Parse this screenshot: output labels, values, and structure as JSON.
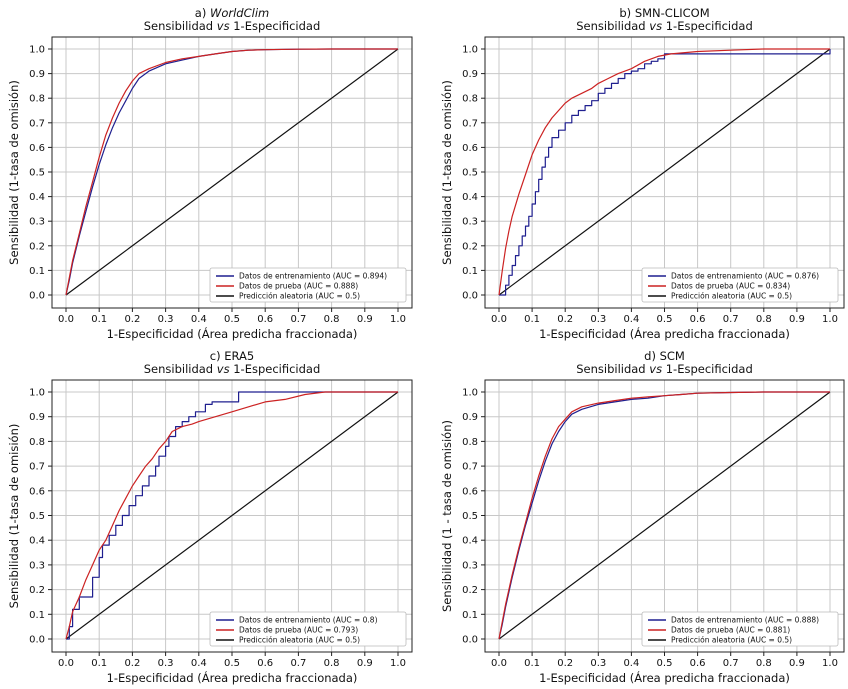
{
  "chart_data": [
    {
      "type": "line",
      "panel": "a)",
      "title_name": "WorldClim",
      "title_italic": true,
      "subtitle_pre": "Sensibilidad ",
      "subtitle_vs": "vs",
      "subtitle_post": " 1-Especificidad",
      "xlabel": "1-Especificidad (Área predicha fraccionada)",
      "ylabel": "Sensibilidad (1-tasa de omisión)",
      "xlim": [
        0,
        1
      ],
      "ylim": [
        0,
        1
      ],
      "xticks": [
        "0.0",
        "0.1",
        "0.2",
        "0.3",
        "0.4",
        "0.5",
        "0.6",
        "0.7",
        "0.8",
        "0.9",
        "1.0"
      ],
      "yticks": [
        "0.0",
        "0.1",
        "0.2",
        "0.3",
        "0.4",
        "0.5",
        "0.6",
        "0.7",
        "0.8",
        "0.9",
        "1.0"
      ],
      "grid": true,
      "legend_position": "lower-right",
      "series": [
        {
          "name": "Datos de entrenamiento (AUC = 0.894)",
          "color": "#1f1f8f",
          "step": false,
          "x": [
            0,
            0.01,
            0.02,
            0.04,
            0.06,
            0.08,
            0.1,
            0.12,
            0.14,
            0.16,
            0.18,
            0.2,
            0.22,
            0.25,
            0.3,
            0.35,
            0.4,
            0.45,
            0.5,
            0.55,
            0.6,
            0.7,
            0.8,
            0.9,
            1.0
          ],
          "y": [
            0,
            0.06,
            0.13,
            0.24,
            0.34,
            0.44,
            0.53,
            0.61,
            0.68,
            0.74,
            0.79,
            0.84,
            0.88,
            0.91,
            0.94,
            0.955,
            0.97,
            0.98,
            0.99,
            0.995,
            0.997,
            0.999,
            1.0,
            1.0,
            1.0
          ]
        },
        {
          "name": "Datos de prueba (AUC = 0.888)",
          "color": "#cc2222",
          "step": false,
          "x": [
            0,
            0.01,
            0.02,
            0.04,
            0.06,
            0.08,
            0.1,
            0.12,
            0.14,
            0.16,
            0.18,
            0.2,
            0.22,
            0.25,
            0.3,
            0.35,
            0.4,
            0.45,
            0.5,
            0.55,
            0.6,
            0.7,
            0.8,
            0.9,
            1.0
          ],
          "y": [
            0,
            0.07,
            0.14,
            0.25,
            0.36,
            0.46,
            0.56,
            0.65,
            0.72,
            0.78,
            0.83,
            0.87,
            0.9,
            0.92,
            0.945,
            0.96,
            0.97,
            0.98,
            0.99,
            0.995,
            0.997,
            0.999,
            1.0,
            1.0,
            1.0
          ]
        },
        {
          "name": "Predicción aleatoria (AUC = 0.5)",
          "color": "#111111",
          "step": false,
          "x": [
            0,
            1.0
          ],
          "y": [
            0,
            1.0
          ]
        }
      ]
    },
    {
      "type": "line",
      "panel": "b)",
      "title_name": "SMN-CLICOM",
      "title_italic": false,
      "subtitle_pre": "Sensibilidad ",
      "subtitle_vs": "vs",
      "subtitle_post": " 1-Especificidad",
      "xlabel": "1-Especificidad (Área predicha fraccionada)",
      "ylabel": "Sensibilidad (1-tasa de omisión)",
      "xlim": [
        0,
        1
      ],
      "ylim": [
        0,
        1
      ],
      "xticks": [
        "0.0",
        "0.1",
        "0.2",
        "0.3",
        "0.4",
        "0.5",
        "0.6",
        "0.7",
        "0.8",
        "0.9",
        "1.0"
      ],
      "yticks": [
        "0.0",
        "0.1",
        "0.2",
        "0.3",
        "0.4",
        "0.5",
        "0.6",
        "0.7",
        "0.8",
        "0.9",
        "1.0"
      ],
      "grid": true,
      "legend_position": "lower-right",
      "series": [
        {
          "name": "Datos de entrenamiento (AUC = 0.876)",
          "color": "#1f1f8f",
          "step": true,
          "x": [
            0,
            0.02,
            0.03,
            0.04,
            0.05,
            0.06,
            0.07,
            0.08,
            0.09,
            0.1,
            0.11,
            0.12,
            0.13,
            0.14,
            0.15,
            0.16,
            0.18,
            0.2,
            0.22,
            0.24,
            0.26,
            0.28,
            0.3,
            0.32,
            0.34,
            0.36,
            0.38,
            0.4,
            0.42,
            0.44,
            0.46,
            0.48,
            0.5,
            0.55,
            0.6,
            0.99,
            1.0
          ],
          "y": [
            0,
            0.04,
            0.08,
            0.12,
            0.16,
            0.2,
            0.24,
            0.28,
            0.32,
            0.37,
            0.42,
            0.47,
            0.52,
            0.56,
            0.6,
            0.64,
            0.67,
            0.7,
            0.73,
            0.75,
            0.77,
            0.79,
            0.82,
            0.84,
            0.86,
            0.88,
            0.9,
            0.91,
            0.92,
            0.94,
            0.95,
            0.96,
            0.98,
            0.98,
            0.98,
            0.98,
            1.0
          ]
        },
        {
          "name": "Datos de prueba (AUC = 0.834)",
          "color": "#cc2222",
          "step": false,
          "x": [
            0,
            0.01,
            0.02,
            0.03,
            0.04,
            0.06,
            0.08,
            0.1,
            0.12,
            0.14,
            0.16,
            0.18,
            0.2,
            0.22,
            0.25,
            0.28,
            0.3,
            0.33,
            0.36,
            0.4,
            0.44,
            0.48,
            0.52,
            0.6,
            0.7,
            0.8,
            0.9,
            1.0
          ],
          "y": [
            0,
            0.1,
            0.19,
            0.26,
            0.32,
            0.41,
            0.49,
            0.57,
            0.63,
            0.68,
            0.72,
            0.75,
            0.78,
            0.8,
            0.82,
            0.84,
            0.86,
            0.88,
            0.9,
            0.92,
            0.95,
            0.97,
            0.98,
            0.99,
            0.995,
            1.0,
            1.0,
            1.0
          ]
        },
        {
          "name": "Predicción aleatoria (AUC = 0.5)",
          "color": "#111111",
          "step": false,
          "x": [
            0,
            1.0
          ],
          "y": [
            0,
            1.0
          ]
        }
      ]
    },
    {
      "type": "line",
      "panel": "c)",
      "title_name": "ERA5",
      "title_italic": false,
      "subtitle_pre": "Sensibilidad ",
      "subtitle_vs": "vs",
      "subtitle_post": " 1-Especificidad",
      "xlabel": "1-Especificidad (Área predicha fraccionada)",
      "ylabel": "Sensibilidad (1-tasa de omisión)",
      "xlim": [
        0,
        1
      ],
      "ylim": [
        0,
        1
      ],
      "xticks": [
        "0.0",
        "0.1",
        "0.2",
        "0.3",
        "0.4",
        "0.5",
        "0.6",
        "0.7",
        "0.8",
        "0.9",
        "1.0"
      ],
      "yticks": [
        "0.0",
        "0.1",
        "0.2",
        "0.3",
        "0.4",
        "0.5",
        "0.6",
        "0.7",
        "0.8",
        "0.9",
        "1.0"
      ],
      "grid": true,
      "legend_position": "lower-right",
      "series": [
        {
          "name": "Datos de entrenamiento (AUC = 0.8)",
          "color": "#1f1f8f",
          "step": true,
          "x": [
            0,
            0.01,
            0.02,
            0.04,
            0.08,
            0.1,
            0.11,
            0.13,
            0.15,
            0.17,
            0.19,
            0.21,
            0.23,
            0.25,
            0.27,
            0.28,
            0.3,
            0.31,
            0.33,
            0.35,
            0.37,
            0.39,
            0.42,
            0.44,
            0.46,
            0.52,
            0.55,
            0.6,
            0.77,
            1.0
          ],
          "y": [
            0,
            0.05,
            0.12,
            0.17,
            0.25,
            0.33,
            0.38,
            0.42,
            0.46,
            0.5,
            0.54,
            0.58,
            0.62,
            0.66,
            0.7,
            0.74,
            0.78,
            0.82,
            0.86,
            0.88,
            0.9,
            0.92,
            0.95,
            0.96,
            0.96,
            1.0,
            1.0,
            1.0,
            1.0,
            1.0
          ]
        },
        {
          "name": "Datos de prueba (AUC = 0.793)",
          "color": "#cc2222",
          "step": false,
          "x": [
            0,
            0.01,
            0.02,
            0.04,
            0.06,
            0.08,
            0.1,
            0.12,
            0.14,
            0.16,
            0.18,
            0.2,
            0.22,
            0.24,
            0.26,
            0.28,
            0.3,
            0.32,
            0.35,
            0.38,
            0.4,
            0.45,
            0.5,
            0.55,
            0.6,
            0.66,
            0.72,
            0.78,
            0.85,
            1.0
          ],
          "y": [
            0,
            0.05,
            0.11,
            0.17,
            0.24,
            0.3,
            0.36,
            0.4,
            0.46,
            0.52,
            0.57,
            0.62,
            0.66,
            0.7,
            0.73,
            0.77,
            0.8,
            0.84,
            0.86,
            0.87,
            0.88,
            0.9,
            0.92,
            0.94,
            0.96,
            0.97,
            0.99,
            1.0,
            1.0,
            1.0
          ]
        },
        {
          "name": "Predicción aleatoria (AUC = 0.5)",
          "color": "#111111",
          "step": false,
          "x": [
            0,
            1.0
          ],
          "y": [
            0,
            1.0
          ]
        }
      ]
    },
    {
      "type": "line",
      "panel": "d)",
      "title_name": "SCM",
      "title_italic": false,
      "subtitle_pre": "Sensibilidad ",
      "subtitle_vs": "vs",
      "subtitle_post": " 1-Especificidad",
      "xlabel": "1-Especificidad (Área predicha fraccionada)",
      "ylabel": "Sensibilidad (1 - tasa de omisión)",
      "xlim": [
        0,
        1
      ],
      "ylim": [
        0,
        1
      ],
      "xticks": [
        "0.0",
        "0.1",
        "0.2",
        "0.3",
        "0.4",
        "0.5",
        "0.6",
        "0.7",
        "0.8",
        "0.9",
        "1.0"
      ],
      "yticks": [
        "0.0",
        "0.1",
        "0.2",
        "0.3",
        "0.4",
        "0.5",
        "0.6",
        "0.7",
        "0.8",
        "0.9",
        "1.0"
      ],
      "grid": true,
      "legend_position": "lower-right",
      "series": [
        {
          "name": "Datos de entrenamiento (AUC = 0.888)",
          "color": "#1f1f8f",
          "step": false,
          "x": [
            0,
            0.01,
            0.02,
            0.04,
            0.06,
            0.08,
            0.1,
            0.12,
            0.14,
            0.16,
            0.18,
            0.2,
            0.22,
            0.25,
            0.3,
            0.35,
            0.4,
            0.45,
            0.5,
            0.55,
            0.6,
            0.7,
            0.8,
            0.9,
            1.0
          ],
          "y": [
            0,
            0.06,
            0.13,
            0.25,
            0.36,
            0.46,
            0.55,
            0.64,
            0.72,
            0.79,
            0.84,
            0.88,
            0.91,
            0.93,
            0.95,
            0.96,
            0.97,
            0.975,
            0.985,
            0.99,
            0.995,
            0.998,
            1.0,
            1.0,
            1.0
          ]
        },
        {
          "name": "Datos de prueba (AUC = 0.881)",
          "color": "#cc2222",
          "step": false,
          "x": [
            0,
            0.01,
            0.02,
            0.04,
            0.06,
            0.08,
            0.1,
            0.12,
            0.14,
            0.16,
            0.18,
            0.2,
            0.22,
            0.25,
            0.3,
            0.35,
            0.4,
            0.45,
            0.5,
            0.55,
            0.6,
            0.7,
            0.8,
            0.9,
            1.0
          ],
          "y": [
            0,
            0.07,
            0.14,
            0.26,
            0.37,
            0.47,
            0.57,
            0.66,
            0.74,
            0.81,
            0.86,
            0.89,
            0.92,
            0.94,
            0.955,
            0.965,
            0.975,
            0.98,
            0.985,
            0.99,
            0.995,
            0.998,
            1.0,
            1.0,
            1.0
          ]
        },
        {
          "name": "Predicción aleatoria (AUC = 0.5)",
          "color": "#111111",
          "step": false,
          "x": [
            0,
            1.0
          ],
          "y": [
            0,
            1.0
          ]
        }
      ]
    }
  ]
}
